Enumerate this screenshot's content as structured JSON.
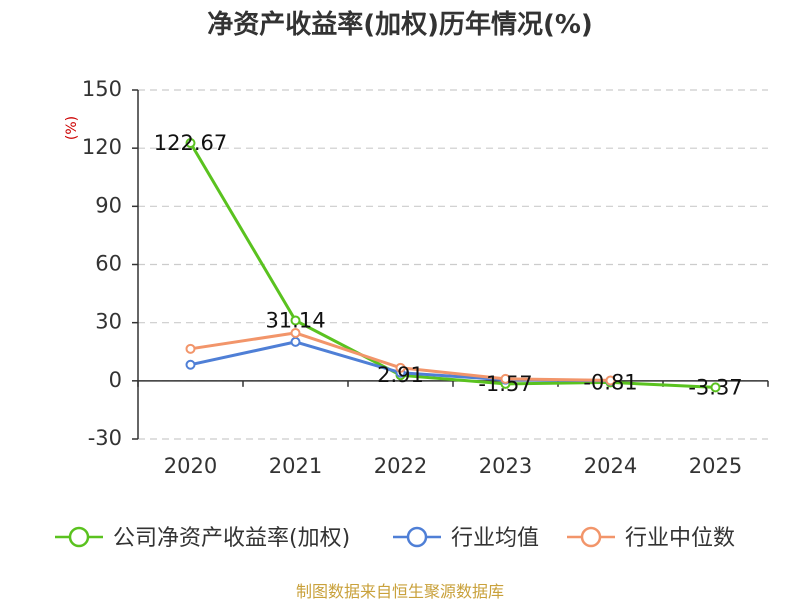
{
  "title": "净资产收益率(加权)历年情况(%)",
  "footer": "制图数据来自恒生聚源数据库",
  "chart_data": {
    "type": "line",
    "title": "净资产收益率(加权)历年情况(%)",
    "xlabel": "",
    "ylabel": "(%)",
    "categories": [
      "2020",
      "2021",
      "2022",
      "2023",
      "2024",
      "2025"
    ],
    "ylim": [
      -30,
      150
    ],
    "yticks": [
      -30,
      0,
      30,
      60,
      90,
      120,
      150
    ],
    "grid": true,
    "legend_position": "bottom",
    "series": [
      {
        "name": "公司净资产收益率(加权)",
        "color": "#5ac21f",
        "values": [
          122.67,
          31.14,
          2.91,
          -1.57,
          -0.81,
          -3.37
        ]
      },
      {
        "name": "行业均值",
        "color": "#4f7fd6",
        "values": [
          8.3,
          20.1,
          4.2,
          0.6,
          0.0,
          null
        ]
      },
      {
        "name": "行业中位数",
        "color": "#f2956a",
        "values": [
          16.5,
          24.7,
          6.7,
          1.0,
          0.2,
          null
        ]
      }
    ]
  }
}
